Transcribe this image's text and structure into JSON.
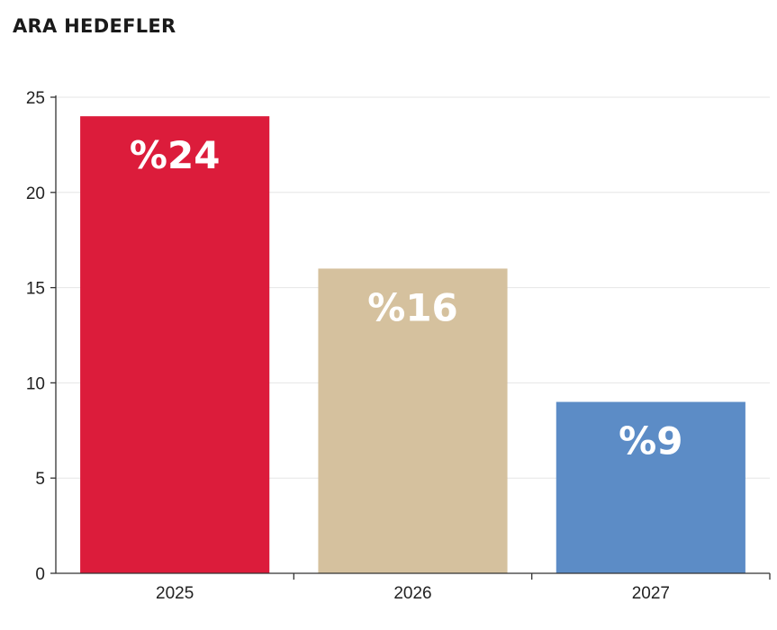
{
  "chart_data": {
    "type": "bar",
    "title": "ARA HEDEFLER",
    "categories": [
      "2025",
      "2026",
      "2027"
    ],
    "values": [
      24,
      16,
      9
    ],
    "data_labels": [
      "%24",
      "%16",
      "%9"
    ],
    "bar_colors": [
      "#dc1c3b",
      "#d5c19e",
      "#5c8cc6"
    ],
    "ylim": [
      0,
      25
    ],
    "yticks": [
      "0",
      "5",
      "10",
      "15",
      "20",
      "25"
    ],
    "xlabel": "",
    "ylabel": "",
    "grid": true
  }
}
